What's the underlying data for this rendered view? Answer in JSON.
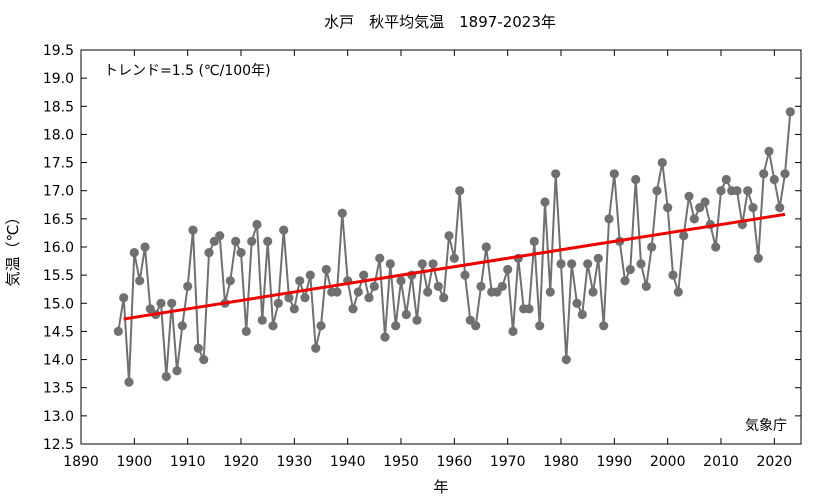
{
  "chart_data": {
    "type": "line",
    "title": "水戸　秋平均気温　1897-2023年",
    "xlabel": "年",
    "ylabel": "気温（℃）",
    "xlim": [
      1890,
      2025
    ],
    "ylim": [
      12.5,
      19.5
    ],
    "xticks": [
      1890,
      1900,
      1910,
      1920,
      1930,
      1940,
      1950,
      1960,
      1970,
      1980,
      1990,
      2000,
      2010,
      2020
    ],
    "yticks": [
      12.5,
      13.0,
      13.5,
      14.0,
      14.5,
      15.0,
      15.5,
      16.0,
      16.5,
      17.0,
      17.5,
      18.0,
      18.5,
      19.0,
      19.5
    ],
    "ytick_labels": [
      "12.5",
      "13.0",
      "13.5",
      "14.0",
      "14.5",
      "15.0",
      "15.5",
      "16.0",
      "16.5",
      "17.0",
      "17.5",
      "18.0",
      "18.5",
      "19.0",
      "19.5"
    ],
    "grid": false,
    "annotation": "トレンド=1.5 (℃/100年)",
    "source": "気象庁",
    "colors": {
      "series": "#707070",
      "trend": "#ee0000"
    },
    "series": [
      {
        "x": [
          1897,
          1898,
          1899,
          1900,
          1901,
          1902,
          1903,
          1904,
          1905,
          1906,
          1907,
          1908,
          1909,
          1910,
          1911,
          1912,
          1913,
          1914,
          1915,
          1916,
          1917,
          1918,
          1919,
          1920,
          1921,
          1922,
          1923,
          1924,
          1925,
          1926,
          1927,
          1928,
          1929,
          1930,
          1931,
          1932,
          1933,
          1934,
          1935,
          1936,
          1937,
          1938,
          1939,
          1940,
          1941,
          1942,
          1943,
          1944,
          1945,
          1946,
          1947,
          1948,
          1949,
          1950,
          1951,
          1952,
          1953,
          1954,
          1955,
          1956,
          1957,
          1958,
          1959,
          1960,
          1961,
          1962,
          1963,
          1964,
          1965,
          1966,
          1967,
          1968,
          1969,
          1970,
          1971,
          1972,
          1973,
          1974,
          1975,
          1976,
          1977,
          1978,
          1979,
          1980,
          1981,
          1982,
          1983,
          1984,
          1985,
          1986,
          1987,
          1988,
          1989,
          1990,
          1991,
          1992,
          1993,
          1994,
          1995,
          1996,
          1997,
          1998,
          1999,
          2000,
          2001,
          2002,
          2003,
          2004,
          2005,
          2006,
          2007,
          2008,
          2009,
          2010,
          2011,
          2012,
          2013,
          2014,
          2015,
          2016,
          2017,
          2018,
          2019,
          2020,
          2021,
          2022,
          2023
        ],
        "values": [
          14.5,
          15.1,
          13.6,
          15.9,
          15.4,
          16.0,
          14.9,
          14.8,
          15.0,
          13.7,
          15.0,
          13.8,
          14.6,
          15.3,
          16.3,
          14.2,
          14.0,
          15.9,
          16.1,
          16.2,
          15.0,
          15.4,
          16.1,
          15.9,
          14.5,
          16.1,
          16.4,
          14.7,
          16.1,
          14.6,
          15.0,
          16.3,
          15.1,
          14.9,
          15.4,
          15.1,
          15.5,
          14.2,
          14.6,
          15.6,
          15.2,
          15.2,
          16.6,
          15.4,
          14.9,
          15.2,
          15.5,
          15.1,
          15.3,
          15.8,
          14.4,
          15.7,
          14.6,
          15.4,
          14.8,
          15.5,
          14.7,
          15.7,
          15.2,
          15.7,
          15.3,
          15.1,
          16.2,
          15.8,
          17.0,
          15.5,
          14.7,
          14.6,
          15.3,
          16.0,
          15.2,
          15.2,
          15.3,
          15.6,
          14.5,
          15.8,
          14.9,
          14.9,
          16.1,
          14.6,
          16.8,
          15.2,
          17.3,
          15.7,
          14.0,
          15.7,
          15.0,
          14.8,
          15.7,
          15.2,
          15.8,
          14.6,
          16.5,
          17.3,
          16.1,
          15.4,
          15.6,
          17.2,
          15.7,
          15.3,
          16.0,
          17.0,
          17.5,
          16.7,
          15.5,
          15.2,
          16.2,
          16.9,
          16.5,
          16.7,
          16.8,
          16.4,
          16.0,
          17.0,
          17.2,
          17.0,
          17.0,
          16.4,
          17.0,
          16.7,
          15.8,
          17.3,
          17.7,
          17.2,
          16.7,
          17.3,
          18.4
        ]
      }
    ],
    "trend": {
      "x": [
        1898,
        2022
      ],
      "values": [
        14.72,
        16.58
      ]
    }
  }
}
